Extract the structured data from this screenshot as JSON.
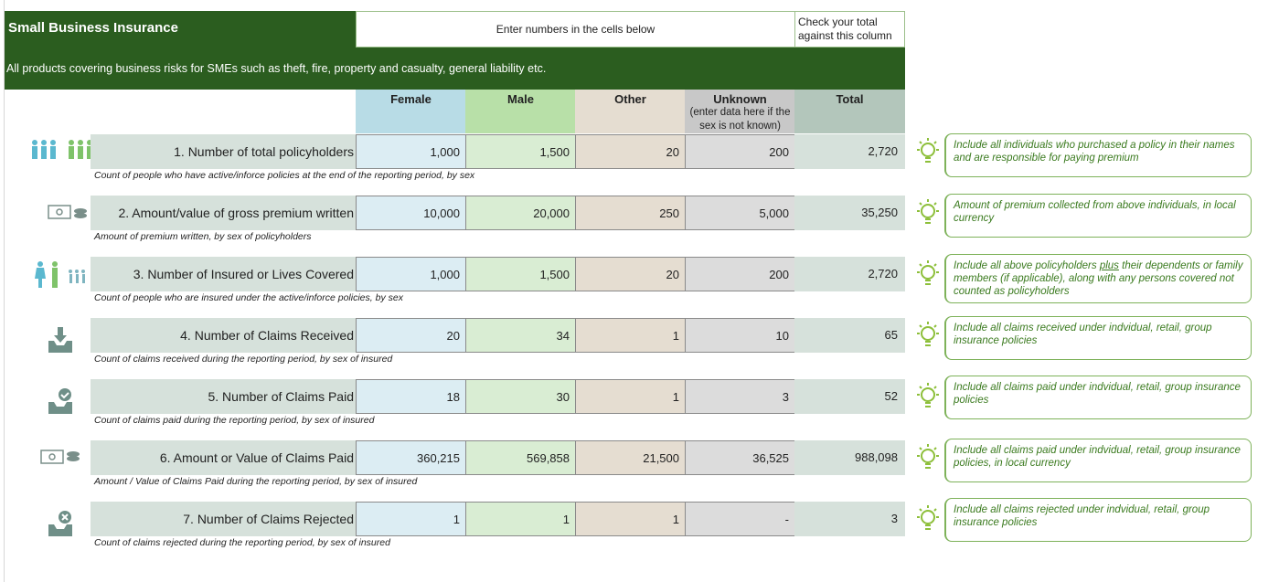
{
  "header": {
    "title": "Small Business Insurance",
    "instruction": "Enter numbers in the cells below",
    "check_note": "Check your total against this column",
    "description": "All products covering business risks for SMEs such as theft, fire, property and casualty, general liability etc."
  },
  "columns": {
    "female": "Female",
    "male": "Male",
    "other": "Other",
    "unknown": "Unknown",
    "unknown_sub": "(enter data here if the sex is not known)",
    "total": "Total"
  },
  "rows": [
    {
      "label": "1. Number of total policyholders",
      "female": "1,000",
      "male": "1,500",
      "other": "20",
      "unknown": "200",
      "total": "2,720",
      "desc": "Count of people who have active/inforce policies at the end of the reporting period, by sex",
      "tip": "Include all individuals who purchased a policy in their names and are responsible for paying premium",
      "icon": "people-icon"
    },
    {
      "label": "2. Amount/value of gross premium written",
      "female": "10,000",
      "male": "20,000",
      "other": "250",
      "unknown": "5,000",
      "total": "35,250",
      "desc": "Amount of premium written, by sex of policyholders",
      "tip": "Amount of premium collected from above individuals, in local currency",
      "icon": "money-icon"
    },
    {
      "label": "3. Number of Insured or Lives Covered",
      "female": "1,000",
      "male": "1,500",
      "other": "20",
      "unknown": "200",
      "total": "2,720",
      "desc": "Count of people who are insured under the active/inforce policies, by sex",
      "tip_pre": "Include all above policyholders ",
      "tip_u": "plus",
      "tip_post": " their dependents or family members (if applicable), along with any persons covered not counted as policyholders",
      "icon": "family-icon"
    },
    {
      "label": "4. Number of Claims Received",
      "female": "20",
      "male": "34",
      "other": "1",
      "unknown": "10",
      "total": "65",
      "desc": "Count of claims received during the reporting period, by sex of insured",
      "tip": "Include all claims received under indvidual, retail, group insurance policies",
      "icon": "inbox-download-icon"
    },
    {
      "label": "5. Number of Claims Paid",
      "female": "18",
      "male": "30",
      "other": "1",
      "unknown": "3",
      "total": "52",
      "desc": "Count of claims paid during the reporting period, by sex of insured",
      "tip": "Include all claims paid under indvidual, retail, group insurance policies",
      "icon": "inbox-check-icon"
    },
    {
      "label": "6. Amount or Value of Claims Paid",
      "female": "360,215",
      "male": "569,858",
      "other": "21,500",
      "unknown": "36,525",
      "total": "988,098",
      "desc": "Amount / Value of Claims Paid during the reporting period, by sex of insured",
      "tip": "Include all claims paid under indvidual, retail, group insurance policies, in local currency",
      "icon": "money-icon"
    },
    {
      "label": "7. Number of Claims Rejected",
      "female": "1",
      "male": "1",
      "other": "1",
      "unknown": "-",
      "total": "3",
      "desc": "Count of claims rejected during the reporting period, by sex of insured",
      "tip": "Include all claims rejected under indvidual, retail, group insurance policies",
      "icon": "inbox-reject-icon"
    }
  ],
  "colors": {
    "dark_green": "#2b5d1f",
    "female": "#b8dce6",
    "male": "#b8e0a8",
    "other": "#e5ddd1",
    "unknown": "#c8c8c8",
    "total": "#b3c6bb",
    "tip_green": "#3a7a1e"
  }
}
